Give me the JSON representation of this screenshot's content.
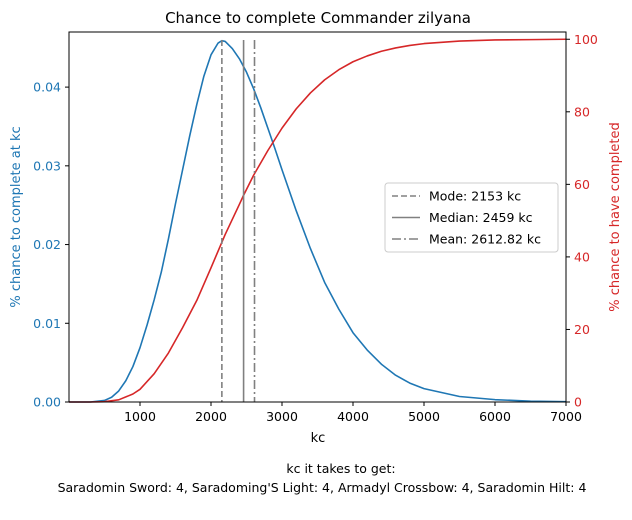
{
  "chart_data": {
    "type": "line",
    "title": "Chance to complete Commander zilyana",
    "xlabel": "kc",
    "xlim": [
      0,
      7000
    ],
    "xticks": [
      1000,
      2000,
      3000,
      4000,
      5000,
      6000,
      7000
    ],
    "y_left": {
      "label": "% chance to complete at kc",
      "color": "#1f77b4",
      "lim": [
        0,
        0.047
      ],
      "ticks": [
        "0.00",
        "0.01",
        "0.02",
        "0.03",
        "0.04"
      ]
    },
    "y_right": {
      "label": "% chance to have completed",
      "color": "#d62728",
      "lim": [
        0,
        102
      ],
      "ticks": [
        "0",
        "20",
        "40",
        "60",
        "80",
        "100"
      ]
    },
    "series": [
      {
        "axis": "left",
        "color": "#1f77b4",
        "x": [
          0,
          300,
          500,
          600,
          700,
          800,
          900,
          1000,
          1100,
          1200,
          1300,
          1400,
          1500,
          1600,
          1700,
          1800,
          1900,
          2000,
          2100,
          2153,
          2200,
          2300,
          2400,
          2500,
          2600,
          2700,
          2800,
          2900,
          3000,
          3200,
          3400,
          3600,
          3800,
          4000,
          4200,
          4400,
          4600,
          4800,
          5000,
          5500,
          6000,
          6500,
          7000
        ],
        "y": [
          0,
          0,
          0.0002,
          0.0006,
          0.0014,
          0.0027,
          0.0045,
          0.0069,
          0.0098,
          0.013,
          0.0165,
          0.0207,
          0.0252,
          0.0295,
          0.0338,
          0.0378,
          0.0414,
          0.0441,
          0.0456,
          0.0459,
          0.0458,
          0.0449,
          0.0436,
          0.0419,
          0.0398,
          0.0374,
          0.0348,
          0.0322,
          0.0295,
          0.0243,
          0.0195,
          0.0152,
          0.0118,
          0.0088,
          0.0066,
          0.0048,
          0.0034,
          0.0024,
          0.0017,
          0.0007,
          0.0003,
          0.0001,
          4e-05
        ]
      },
      {
        "axis": "right",
        "color": "#d62728",
        "x": [
          0,
          300,
          500,
          700,
          900,
          1000,
          1200,
          1400,
          1600,
          1800,
          2000,
          2200,
          2400,
          2459,
          2600,
          2800,
          3000,
          3200,
          3400,
          3600,
          3800,
          4000,
          4200,
          4400,
          4600,
          4800,
          5000,
          5500,
          6000,
          6500,
          7000
        ],
        "y": [
          0,
          0,
          0.1,
          0.6,
          2.2,
          3.5,
          7.8,
          13.5,
          20.5,
          28,
          37,
          46.2,
          54.5,
          57,
          62.5,
          69.3,
          75.5,
          80.8,
          85.2,
          88.8,
          91.6,
          93.8,
          95.4,
          96.7,
          97.6,
          98.3,
          98.8,
          99.5,
          99.8,
          99.9,
          100
        ]
      }
    ],
    "vlines": [
      {
        "x": 2153,
        "style": "dashed",
        "color": "#808080",
        "label": "Mode: 2153 kc"
      },
      {
        "x": 2459,
        "style": "solid",
        "color": "#808080",
        "label": "Median: 2459 kc"
      },
      {
        "x": 2612.82,
        "style": "dashdot",
        "color": "#808080",
        "label": "Mean: 2612.82 kc"
      }
    ],
    "legend_position": "center-right"
  },
  "footer": {
    "line1": "kc it takes to get:",
    "line2": "Saradomin Sword: 4,  Saradoming'S Light: 4,  Armadyl Crossbow: 4,  Saradomin Hilt: 4"
  }
}
